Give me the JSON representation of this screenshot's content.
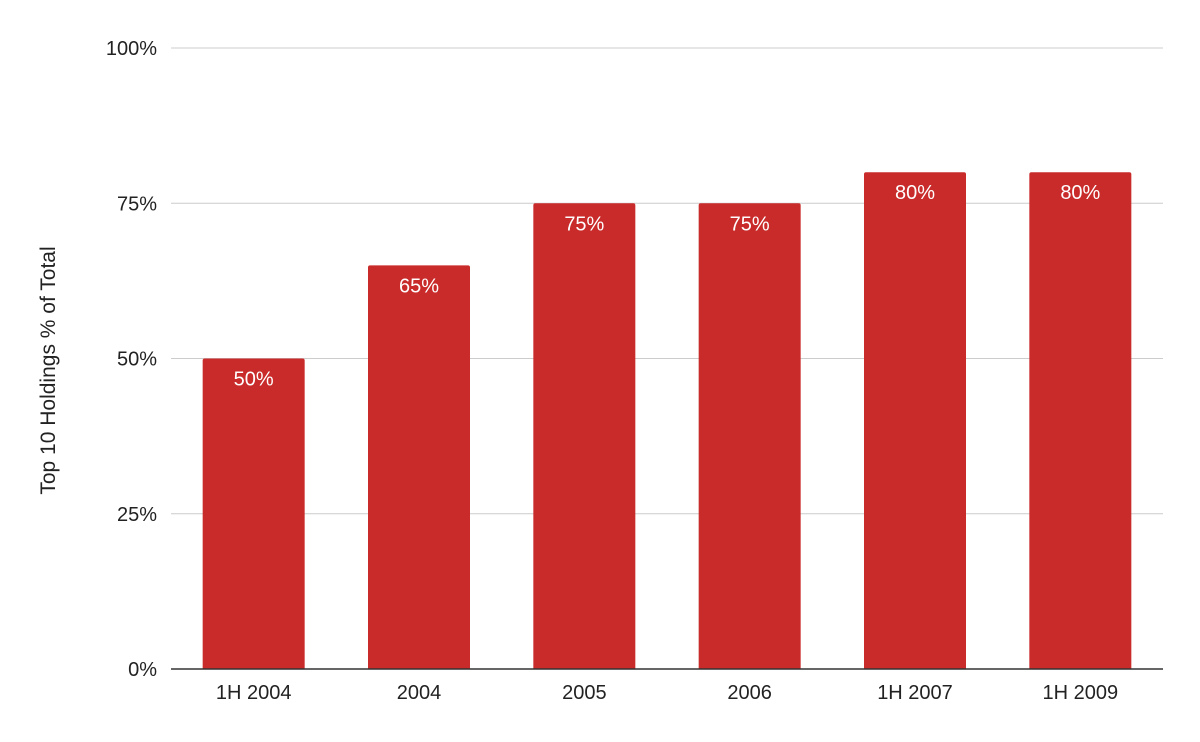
{
  "chart_data": {
    "type": "bar",
    "categories": [
      "1H 2004",
      "2004",
      "2005",
      "2006",
      "1H 2007",
      "1H 2009"
    ],
    "values": [
      50,
      65,
      75,
      75,
      80,
      80
    ],
    "data_labels": [
      "50%",
      "65%",
      "75%",
      "75%",
      "80%",
      "80%"
    ],
    "ylabel": "Top 10 Holdings % of Total",
    "ylim": [
      0,
      100
    ],
    "yticks": [
      0,
      25,
      50,
      75,
      100
    ],
    "ytick_labels": [
      "0%",
      "25%",
      "50%",
      "75%",
      "100%"
    ],
    "grid": true,
    "bar_color": "#c92a2a"
  }
}
